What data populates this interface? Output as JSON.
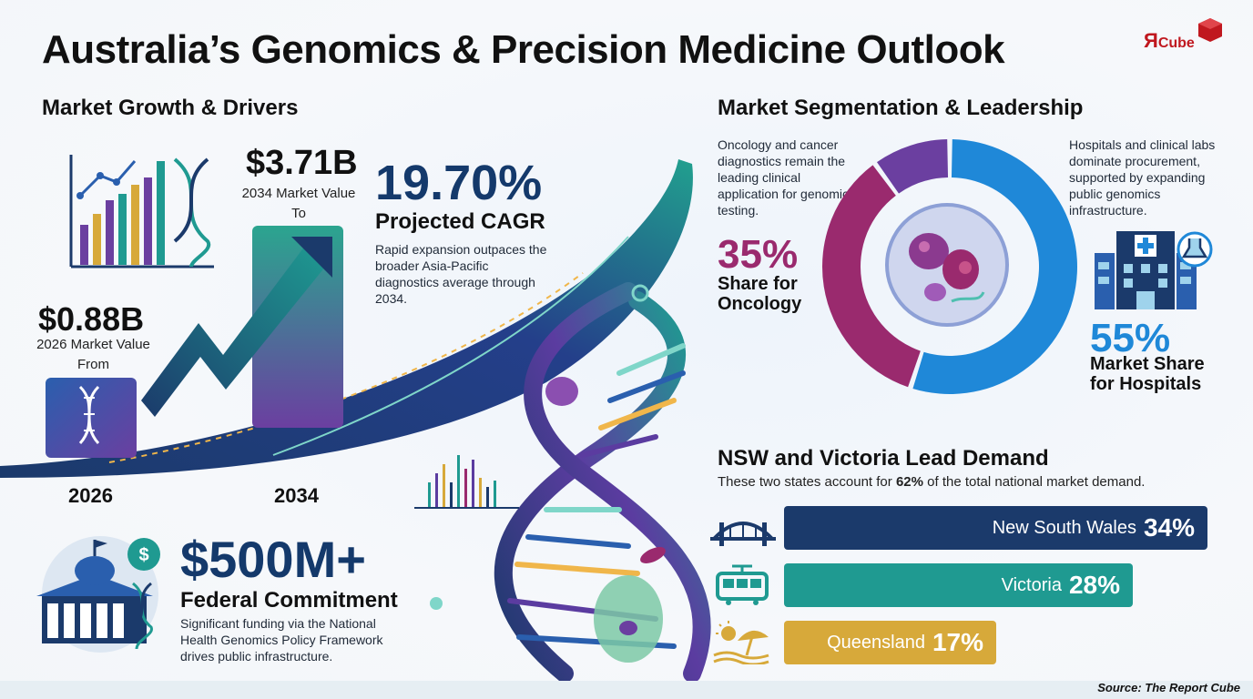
{
  "title": "Australia’s Genomics & Precision Medicine Outlook",
  "logo": {
    "letter": "Я",
    "word": "Cube"
  },
  "growth": {
    "section_title": "Market Growth & Drivers",
    "value_2034": "$3.71B",
    "caption_2034_line1": "2034 Market Value",
    "caption_2034_line2": "To",
    "value_2026": "$0.88B",
    "caption_2026_line1": "2026 Market Value",
    "caption_2026_line2": "From",
    "cagr_value": "19.70%",
    "cagr_label": "Projected CAGR",
    "cagr_text": "Rapid expansion outpaces the broader Asia-Pacific diagnostics average through 2034.",
    "funding_value": "$500M+",
    "funding_label": "Federal Commitment",
    "funding_text": "Significant funding via the National Health Genomics Policy Framework drives public infrastructure."
  },
  "segmentation": {
    "section_title": "Market Segmentation & Leadership",
    "oncology_text": "Oncology and cancer diagnostics remain the leading clinical application for genomic testing.",
    "oncology_pct": "35%",
    "oncology_label_line1": "Share for",
    "oncology_label_line2": "Oncology",
    "hospital_text": "Hospitals and clinical labs dominate procurement, supported by expanding public genomics infrastructure.",
    "hospital_pct": "55%",
    "hospital_label_line1": "Market Share",
    "hospital_label_line2": "for Hospitals"
  },
  "states": {
    "section_title": "NSW and Victoria Lead Demand",
    "subtitle_prefix": "These two states account for ",
    "subtitle_pct": "62%",
    "subtitle_suffix": " of the total national market demand."
  },
  "source": "Source: The Report Cube",
  "colors": {
    "navy": "#1b3a6b",
    "teal": "#1f9a91",
    "gold": "#d7a93a",
    "blue": "#1f88d8",
    "magenta": "#9a2a6e",
    "purple": "#6b3fa0"
  },
  "chart_data": [
    {
      "type": "bar",
      "categories": [
        "2026",
        "2034"
      ],
      "values": [
        0.88,
        3.71
      ],
      "value_labels": [
        "$0.88B",
        "$3.71B"
      ],
      "ylabel": "Market Value",
      "unit": "USD billion",
      "cagr": "19.70%"
    },
    {
      "type": "pie",
      "series": [
        {
          "name": "Hospitals",
          "value": 55,
          "color": "#1f88d8"
        },
        {
          "name": "Oncology",
          "value": 35,
          "color": "#9a2a6e"
        },
        {
          "name": "",
          "value": 10,
          "color": "#6b3fa0"
        }
      ]
    },
    {
      "type": "bar",
      "orientation": "horizontal",
      "categories": [
        "New South Wales",
        "Victoria",
        "Queensland"
      ],
      "values": [
        34,
        28,
        17
      ],
      "colors": [
        "#1b3a6b",
        "#1f9a91",
        "#d7a93a"
      ],
      "icons": [
        "bridge-icon",
        "tram-icon",
        "beach-umbrella-icon"
      ]
    }
  ]
}
